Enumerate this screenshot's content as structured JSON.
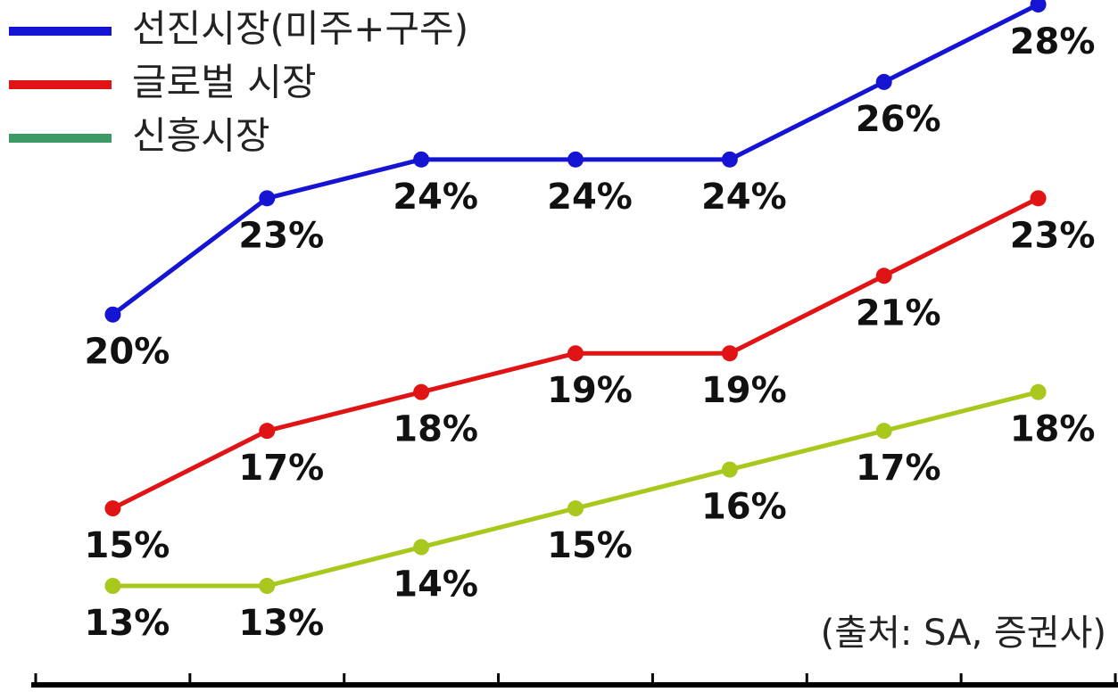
{
  "chart_data": {
    "type": "line",
    "categories": [
      null,
      null,
      null,
      null,
      null,
      null,
      null
    ],
    "series": [
      {
        "name": "선진시장(미주+구주)",
        "color": "#1414d2",
        "legend_color": "#1414d2",
        "values": [
          20,
          23,
          24,
          24,
          24,
          26,
          28
        ],
        "value_labels": [
          "20%",
          "23%",
          "24%",
          "24%",
          "24%",
          "26%",
          "28%"
        ]
      },
      {
        "name": "글로벌 시장",
        "color": "#e01414",
        "legend_color": "#e01414",
        "values": [
          15,
          17,
          18,
          19,
          19,
          21,
          23
        ],
        "value_labels": [
          "15%",
          "17%",
          "18%",
          "19%",
          "19%",
          "21%",
          "23%"
        ]
      },
      {
        "name": "신흥시장",
        "color": "#a8c81e",
        "legend_color": "#3c9a64",
        "values": [
          13,
          13,
          14,
          15,
          16,
          17,
          18
        ],
        "value_labels": [
          "13%",
          "13%",
          "14%",
          "15%",
          "16%",
          "17%",
          "18%"
        ]
      }
    ],
    "annotation": "(출처: SA, 증권사)"
  }
}
